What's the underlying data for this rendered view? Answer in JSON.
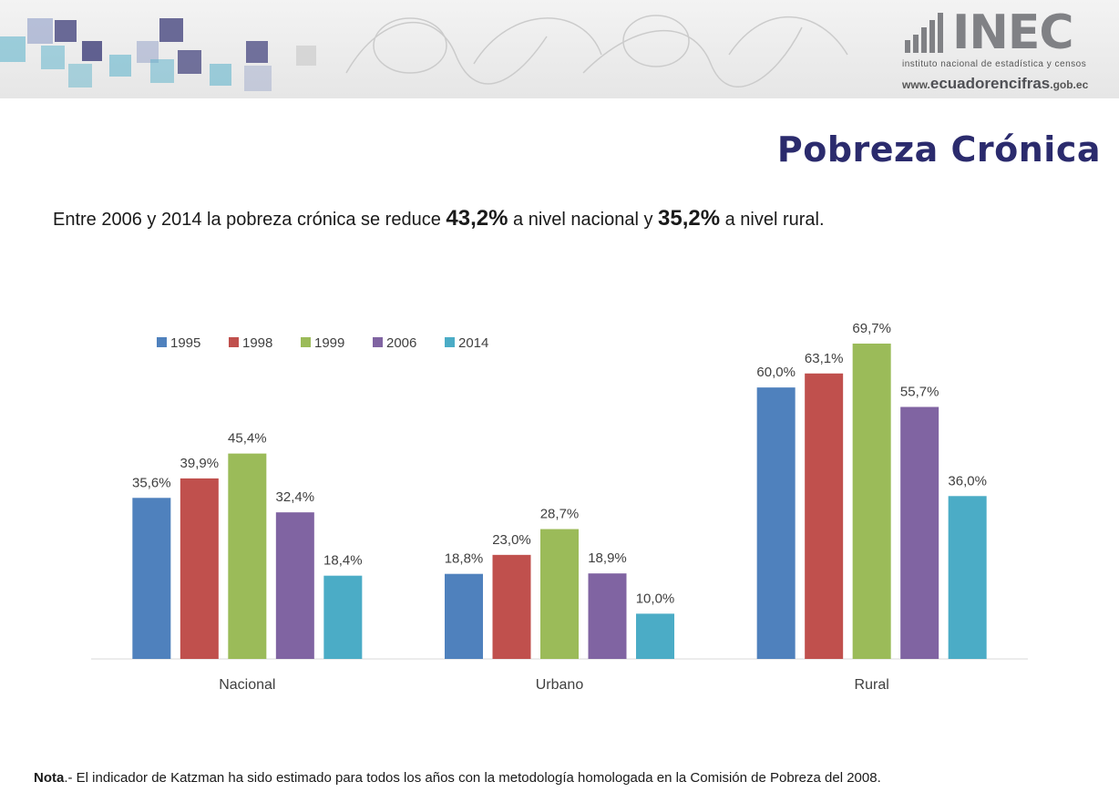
{
  "header": {
    "logo_main": "INEC",
    "logo_subtitle": "instituto nacional de estadística y censos",
    "website_prefix": "www.",
    "website_main": "ecuadorencifras",
    "website_suffix": ".gob.ec"
  },
  "page_title": "Pobreza Crónica",
  "subtitle": {
    "part1": "Entre 2006 y 2014 la pobreza crónica se reduce ",
    "value1": "43,2%",
    "part2": " a nivel nacional y ",
    "value2": "35,2%",
    "part3": " a nivel rural."
  },
  "note": {
    "label": "Nota",
    "text": ".- El indicador de Katzman ha sido estimado para todos los años con la metodología homologada en la Comisión de Pobreza del 2008."
  },
  "chart_data": {
    "type": "bar",
    "categories": [
      "Nacional",
      "Urbano",
      "Rural"
    ],
    "series": [
      {
        "name": "1995",
        "color": "#4f81bd",
        "values": [
          35.6,
          18.8,
          60.0
        ],
        "labels": [
          "35,6%",
          "18,8%",
          "60,0%"
        ]
      },
      {
        "name": "1998",
        "color": "#c0504d",
        "values": [
          39.9,
          23.0,
          63.1
        ],
        "labels": [
          "39,9%",
          "23,0%",
          "63,1%"
        ]
      },
      {
        "name": "1999",
        "color": "#9bbb59",
        "values": [
          45.4,
          28.7,
          69.7
        ],
        "labels": [
          "45,4%",
          "28,7%",
          "69,7%"
        ]
      },
      {
        "name": "2006",
        "color": "#8064a2",
        "values": [
          32.4,
          18.9,
          55.7
        ],
        "labels": [
          "32,4%",
          "18,9%",
          "55,7%"
        ]
      },
      {
        "name": "2014",
        "color": "#4bacc6",
        "values": [
          18.4,
          10.0,
          36.0
        ],
        "labels": [
          "18,4%",
          "10,0%",
          "36,0%"
        ]
      }
    ],
    "ylim": [
      0,
      70
    ],
    "grid": false,
    "legend_position": "top-left"
  }
}
